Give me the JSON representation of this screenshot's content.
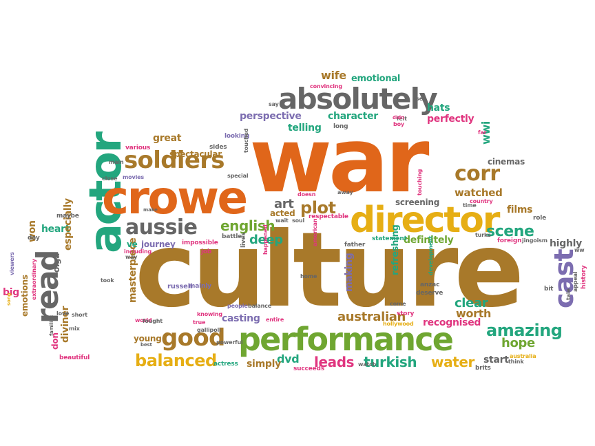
{
  "colors": {
    "orange": "#E0661A",
    "brown": "#A8792A",
    "gold": "#E6AE14",
    "green": "#6FA631",
    "teal": "#23A67E",
    "gray": "#666666",
    "purple": "#7C6DB0",
    "pink": "#E0357F",
    "darkgray": "#505050"
  },
  "words": [
    {
      "text": "culture",
      "color": "brown"
    },
    {
      "text": "war",
      "color": "orange"
    },
    {
      "text": "actor",
      "color": "teal"
    },
    {
      "text": "crowe",
      "color": "orange"
    },
    {
      "text": "director",
      "color": "gold"
    },
    {
      "text": "performance",
      "color": "green"
    },
    {
      "text": "absolutely",
      "color": "gray"
    },
    {
      "text": "read",
      "color": "gray"
    },
    {
      "text": "soldiers",
      "color": "brown"
    },
    {
      "text": "cast",
      "color": "purple"
    },
    {
      "text": "aussie",
      "color": "gray"
    },
    {
      "text": "good",
      "color": "brown"
    },
    {
      "text": "corr",
      "color": "brown"
    },
    {
      "text": "scene",
      "color": "teal"
    },
    {
      "text": "amazing",
      "color": "teal"
    },
    {
      "text": "english",
      "color": "green"
    },
    {
      "text": "balanced",
      "color": "gold"
    },
    {
      "text": "plot",
      "color": "brown"
    },
    {
      "text": "leads",
      "color": "pink"
    },
    {
      "text": "turkish",
      "color": "teal"
    },
    {
      "text": "water",
      "color": "gold"
    },
    {
      "text": "australian",
      "color": "brown"
    },
    {
      "text": "hope",
      "color": "green"
    },
    {
      "text": "watched",
      "color": "brown"
    },
    {
      "text": "definitely",
      "color": "green"
    },
    {
      "text": "won",
      "color": "brown"
    },
    {
      "text": "deep",
      "color": "teal"
    },
    {
      "text": "art",
      "color": "gray"
    },
    {
      "text": "perspective",
      "color": "purple"
    },
    {
      "text": "character",
      "color": "teal"
    },
    {
      "text": "hats",
      "color": "teal"
    },
    {
      "text": "perfectly",
      "color": "pink"
    },
    {
      "text": "cinemas",
      "color": "gray"
    },
    {
      "text": "masterpiece",
      "color": "brown"
    },
    {
      "text": "olga",
      "color": "gray"
    },
    {
      "text": "making",
      "color": "purple"
    },
    {
      "text": "refreshing",
      "color": "teal"
    },
    {
      "text": "clear",
      "color": "teal"
    },
    {
      "text": "worth",
      "color": "brown"
    },
    {
      "text": "recognised",
      "color": "pink"
    },
    {
      "text": "casting",
      "color": "purple"
    },
    {
      "text": "dvd",
      "color": "teal"
    },
    {
      "text": "young",
      "color": "brown"
    },
    {
      "text": "simply",
      "color": "brown"
    },
    {
      "text": "start",
      "color": "gray"
    },
    {
      "text": "heart",
      "color": "teal"
    },
    {
      "text": "especially",
      "color": "brown"
    },
    {
      "text": "diviner",
      "color": "brown"
    },
    {
      "text": "emotions",
      "color": "brown"
    },
    {
      "text": "great",
      "color": "brown"
    },
    {
      "text": "telling",
      "color": "teal"
    },
    {
      "text": "wwi",
      "color": "teal"
    },
    {
      "text": "highly",
      "color": "gray"
    },
    {
      "text": "wife",
      "color": "brown"
    },
    {
      "text": "emotional",
      "color": "teal"
    },
    {
      "text": "films",
      "color": "brown"
    },
    {
      "text": "screening",
      "color": "gray"
    },
    {
      "text": "acted",
      "color": "brown"
    },
    {
      "text": "spectacular",
      "color": "brown"
    },
    {
      "text": "journey",
      "color": "purple"
    },
    {
      "text": "ve",
      "color": "teal"
    },
    {
      "text": "big",
      "color": "pink"
    },
    {
      "text": "don",
      "color": "pink"
    },
    {
      "text": "impossible",
      "color": "pink"
    },
    {
      "text": "russell",
      "color": "purple"
    },
    {
      "text": "respectable",
      "color": "pink"
    },
    {
      "text": "statement",
      "color": "teal"
    },
    {
      "text": "respectable",
      "color": "pink"
    },
    {
      "text": "history",
      "color": "pink"
    },
    {
      "text": "bit",
      "color": "gray"
    },
    {
      "text": "appeal",
      "color": "gray"
    },
    {
      "text": "tale",
      "color": "gray"
    },
    {
      "text": "ww",
      "color": "gray"
    },
    {
      "text": "role",
      "color": "gray"
    },
    {
      "text": "foreign",
      "color": "pink"
    },
    {
      "text": "jingoism",
      "color": "gray"
    },
    {
      "text": "turks",
      "color": "gray"
    },
    {
      "text": "country",
      "color": "pink"
    },
    {
      "text": "time",
      "color": "gray"
    },
    {
      "text": "touching",
      "color": "pink"
    },
    {
      "text": "far",
      "color": "pink"
    },
    {
      "text": "felt",
      "color": "gray"
    },
    {
      "text": "boy",
      "color": "pink"
    },
    {
      "text": "didn",
      "color": "pink"
    },
    {
      "text": "set",
      "color": "gray"
    },
    {
      "text": "long",
      "color": "gray"
    },
    {
      "text": "convincing",
      "color": "pink"
    },
    {
      "text": "say",
      "color": "gray"
    },
    {
      "text": "looking",
      "color": "purple"
    },
    {
      "text": "sides",
      "color": "gray"
    },
    {
      "text": "touched",
      "color": "gray"
    },
    {
      "text": "various",
      "color": "pink"
    },
    {
      "text": "main",
      "color": "gray"
    },
    {
      "text": "close",
      "color": "gray"
    },
    {
      "text": "movies",
      "color": "purple"
    },
    {
      "text": "special",
      "color": "gray"
    },
    {
      "text": "doesn",
      "color": "pink"
    },
    {
      "text": "away",
      "color": "gray"
    },
    {
      "text": "wait",
      "color": "gray"
    },
    {
      "text": "soul",
      "color": "gray"
    },
    {
      "text": "make",
      "color": "gray"
    },
    {
      "text": "maybe",
      "color": "gray"
    },
    {
      "text": "day",
      "color": "gray"
    },
    {
      "text": "viewers",
      "color": "purple"
    },
    {
      "text": "including",
      "color": "pink"
    },
    {
      "text": "way",
      "color": "gray"
    },
    {
      "text": "job",
      "color": "pink"
    },
    {
      "text": "battle",
      "color": "gray"
    },
    {
      "text": "lives",
      "color": "gray"
    },
    {
      "text": "american",
      "color": "pink"
    },
    {
      "text": "happened",
      "color": "pink"
    },
    {
      "text": "father",
      "color": "gray"
    },
    {
      "text": "development",
      "color": "teal"
    },
    {
      "text": "anzac",
      "color": "gray"
    },
    {
      "text": "deserve",
      "color": "gray"
    },
    {
      "text": "come",
      "color": "gray"
    },
    {
      "text": "story",
      "color": "pink"
    },
    {
      "text": "hollywood",
      "color": "gold"
    },
    {
      "text": "home",
      "color": "gray"
    },
    {
      "text": "took",
      "color": "gray"
    },
    {
      "text": "mainly",
      "color": "purple"
    },
    {
      "text": "people",
      "color": "purple"
    },
    {
      "text": "balance",
      "color": "gray"
    },
    {
      "text": "entire",
      "color": "pink"
    },
    {
      "text": "love",
      "color": "gray"
    },
    {
      "text": "short",
      "color": "gray"
    },
    {
      "text": "mix",
      "color": "gray"
    },
    {
      "text": "extraordinary",
      "color": "pink"
    },
    {
      "text": "families",
      "color": "gray"
    },
    {
      "text": "beautiful",
      "color": "pink"
    },
    {
      "text": "world",
      "color": "pink"
    },
    {
      "text": "fought",
      "color": "gray"
    },
    {
      "text": "true",
      "color": "pink"
    },
    {
      "text": "knowing",
      "color": "pink"
    },
    {
      "text": "gallipoli",
      "color": "gray"
    },
    {
      "text": "powerful",
      "color": "gray"
    },
    {
      "text": "best",
      "color": "gray"
    },
    {
      "text": "actress",
      "color": "teal"
    },
    {
      "text": "succeeds",
      "color": "pink"
    },
    {
      "text": "watch",
      "color": "gray"
    },
    {
      "text": "brits",
      "color": "gray"
    },
    {
      "text": "australia",
      "color": "gold"
    },
    {
      "text": "think",
      "color": "gray"
    },
    {
      "text": "song",
      "color": "gold"
    }
  ]
}
